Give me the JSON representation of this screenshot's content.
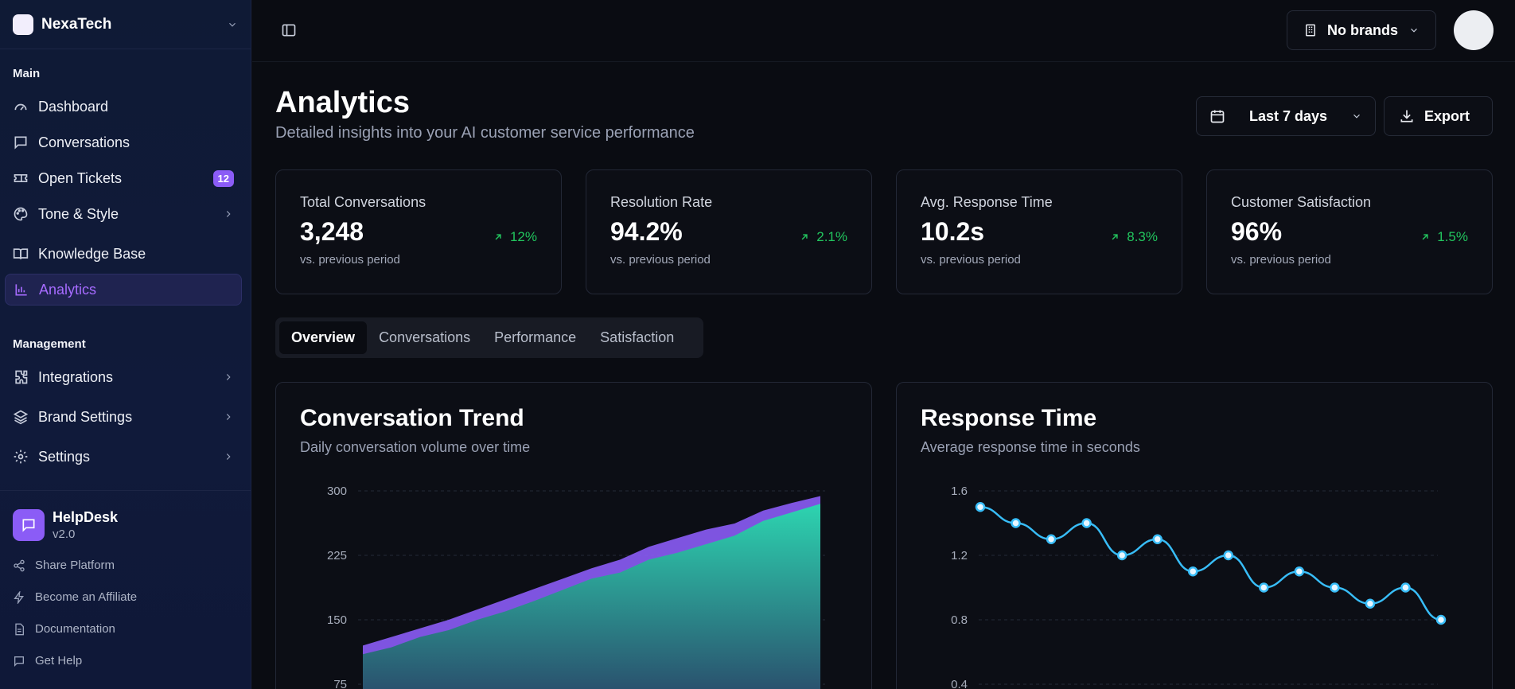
{
  "sidebar": {
    "brand": "NexaTech",
    "main_label": "Main",
    "main_items": [
      {
        "label": "Dashboard",
        "icon": "gauge-icon"
      },
      {
        "label": "Conversations",
        "icon": "chat-icon"
      },
      {
        "label": "Open Tickets",
        "icon": "ticket-icon",
        "badge": "12"
      },
      {
        "label": "Tone & Style",
        "icon": "palette-icon"
      },
      {
        "label": "Knowledge Base",
        "icon": "book-icon"
      },
      {
        "label": "Analytics",
        "icon": "bar-chart-icon",
        "active": true
      }
    ],
    "management_label": "Management",
    "management_items": [
      {
        "label": "Integrations",
        "icon": "puzzle-icon"
      },
      {
        "label": "Brand Settings",
        "icon": "layers-icon"
      },
      {
        "label": "Settings",
        "icon": "gear-icon"
      }
    ],
    "product": {
      "name": "HelpDesk",
      "version": "v2.0"
    },
    "footer_links": [
      {
        "label": "Share Platform",
        "icon": "share-icon"
      },
      {
        "label": "Become an Affiliate",
        "icon": "bolt-icon"
      },
      {
        "label": "Documentation",
        "icon": "document-icon"
      },
      {
        "label": "Get Help",
        "icon": "chat-icon"
      }
    ]
  },
  "topbar": {
    "brands_label": "No brands"
  },
  "page": {
    "title": "Analytics",
    "subtitle": "Detailed insights into your AI customer service performance",
    "date_range": "Last 7 days",
    "export_label": "Export"
  },
  "stats": [
    {
      "label": "Total Conversations",
      "value": "3,248",
      "change": "12%",
      "note": "vs. previous period"
    },
    {
      "label": "Resolution Rate",
      "value": "94.2%",
      "change": "2.1%",
      "note": "vs. previous period"
    },
    {
      "label": "Avg. Response Time",
      "value": "10.2s",
      "change": "8.3%",
      "note": "vs. previous period"
    },
    {
      "label": "Customer Satisfaction",
      "value": "96%",
      "change": "1.5%",
      "note": "vs. previous period"
    }
  ],
  "tabs": [
    "Overview",
    "Conversations",
    "Performance",
    "Satisfaction"
  ],
  "colors": {
    "accent": "#a66bff",
    "positive": "#22c55e",
    "area_top": "#8b5cf6",
    "area_main": "#2dd4b0",
    "line": "#38bdf8"
  },
  "chart_data": [
    {
      "type": "area",
      "title": "Conversation Trend",
      "subtitle": "Daily conversation volume over time",
      "yticks": [
        300,
        225,
        150,
        75
      ],
      "ylim": [
        0,
        300
      ],
      "series": [
        {
          "values": [
            110,
            118,
            130,
            138,
            150,
            160,
            172,
            185,
            198,
            205,
            220,
            228,
            238,
            248,
            265,
            275,
            285
          ]
        },
        {
          "values": [
            120,
            130,
            140,
            150,
            162,
            174,
            186,
            198,
            210,
            220,
            235,
            245,
            255,
            262,
            277,
            286,
            294
          ]
        }
      ]
    },
    {
      "type": "line",
      "title": "Response Time",
      "subtitle": "Average response time in seconds",
      "yticks": [
        1.6,
        1.2,
        0.8,
        0.4
      ],
      "ylim": [
        0.4,
        1.6
      ],
      "series": [
        {
          "values": [
            1.5,
            1.4,
            1.3,
            1.4,
            1.2,
            1.3,
            1.1,
            1.2,
            1.0,
            1.1,
            1.0,
            0.9,
            1.0,
            0.8
          ]
        }
      ]
    }
  ]
}
